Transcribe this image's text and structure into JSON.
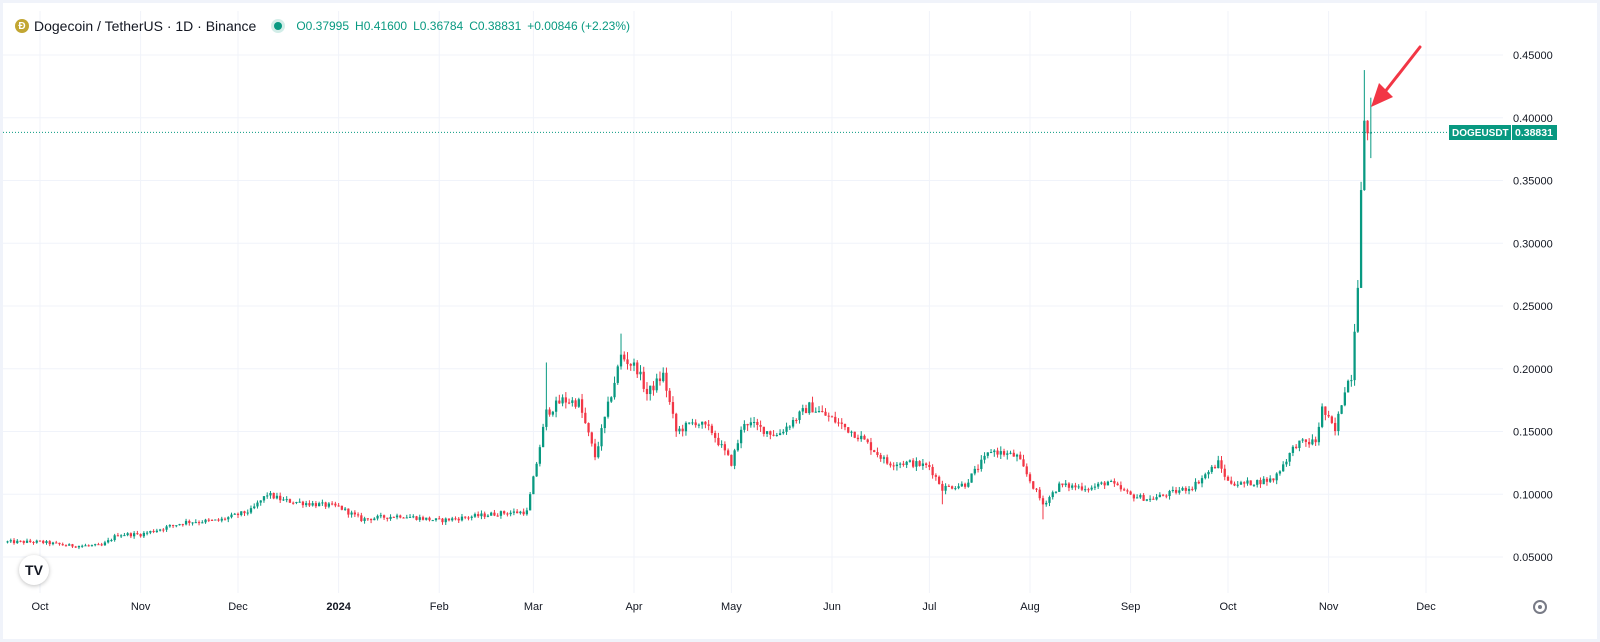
{
  "header": {
    "title": "Dogecoin / TetherUS · 1D · Binance",
    "logo_glyph": "Ð",
    "status_icon": "market-open-dot-icon",
    "ohlc": {
      "open_label": "O",
      "open": "0.37995",
      "high_label": "H",
      "high": "0.41600",
      "low_label": "L",
      "low": "0.36784",
      "close_label": "C",
      "close": "0.38831",
      "change": "+0.00846 (+2.23%)"
    }
  },
  "price_tag": {
    "symbol": "DOGEUSDT",
    "value": "0.38831"
  },
  "colors": {
    "up": "#089981",
    "down": "#f23645",
    "grid": "#f0f3fa",
    "text": "#131722",
    "arrow": "#f23645"
  },
  "chart_data": {
    "type": "candlestick",
    "symbol": "DOGEUSDT",
    "interval": "1D",
    "exchange": "Binance",
    "ylim": [
      0.03,
      0.47
    ],
    "y_ticks": [
      "0.05000",
      "0.10000",
      "0.15000",
      "0.20000",
      "0.25000",
      "0.30000",
      "0.35000",
      "0.40000",
      "0.45000"
    ],
    "x_ticks": [
      "Oct",
      "Nov",
      "Dec",
      "2024",
      "Feb",
      "Mar",
      "Apr",
      "May",
      "Jun",
      "Jul",
      "Aug",
      "Sep",
      "Oct",
      "Nov",
      "Dec"
    ],
    "x_tick_dates": [
      "2023-10-01",
      "2023-11-01",
      "2023-12-01",
      "2024-01-01",
      "2024-02-01",
      "2024-03-01",
      "2024-04-01",
      "2024-05-01",
      "2024-06-01",
      "2024-07-01",
      "2024-08-01",
      "2024-09-01",
      "2024-10-01",
      "2024-11-01",
      "2024-12-01"
    ],
    "last_close": 0.38831,
    "annotation": "red arrow pointing at latest candles",
    "close_keyframes": [
      [
        "2023-09-21",
        0.062
      ],
      [
        "2023-10-01",
        0.062
      ],
      [
        "2023-10-10",
        0.059
      ],
      [
        "2023-10-20",
        0.059
      ],
      [
        "2023-10-25",
        0.068
      ],
      [
        "2023-11-01",
        0.068
      ],
      [
        "2023-11-15",
        0.078
      ],
      [
        "2023-11-25",
        0.079
      ],
      [
        "2023-12-05",
        0.087
      ],
      [
        "2023-12-10",
        0.1
      ],
      [
        "2023-12-15",
        0.095
      ],
      [
        "2024-01-01",
        0.09
      ],
      [
        "2024-01-08",
        0.08
      ],
      [
        "2024-01-20",
        0.083
      ],
      [
        "2024-02-01",
        0.079
      ],
      [
        "2024-02-20",
        0.085
      ],
      [
        "2024-02-28",
        0.086
      ],
      [
        "2024-03-02",
        0.125
      ],
      [
        "2024-03-05",
        0.165
      ],
      [
        "2024-03-10",
        0.175
      ],
      [
        "2024-03-15",
        0.173
      ],
      [
        "2024-03-20",
        0.13
      ],
      [
        "2024-03-24",
        0.17
      ],
      [
        "2024-03-28",
        0.21
      ],
      [
        "2024-04-02",
        0.2
      ],
      [
        "2024-04-05",
        0.18
      ],
      [
        "2024-04-10",
        0.195
      ],
      [
        "2024-04-14",
        0.15
      ],
      [
        "2024-04-20",
        0.158
      ],
      [
        "2024-04-25",
        0.15
      ],
      [
        "2024-05-01",
        0.125
      ],
      [
        "2024-05-05",
        0.158
      ],
      [
        "2024-05-15",
        0.147
      ],
      [
        "2024-05-25",
        0.17
      ],
      [
        "2024-06-01",
        0.16
      ],
      [
        "2024-06-10",
        0.145
      ],
      [
        "2024-06-18",
        0.125
      ],
      [
        "2024-06-25",
        0.125
      ],
      [
        "2024-07-01",
        0.122
      ],
      [
        "2024-07-05",
        0.105
      ],
      [
        "2024-07-12",
        0.108
      ],
      [
        "2024-07-20",
        0.135
      ],
      [
        "2024-07-28",
        0.13
      ],
      [
        "2024-08-05",
        0.092
      ],
      [
        "2024-08-10",
        0.107
      ],
      [
        "2024-08-20",
        0.105
      ],
      [
        "2024-08-25",
        0.11
      ],
      [
        "2024-09-01",
        0.099
      ],
      [
        "2024-09-07",
        0.096
      ],
      [
        "2024-09-20",
        0.106
      ],
      [
        "2024-09-28",
        0.125
      ],
      [
        "2024-10-01",
        0.11
      ],
      [
        "2024-10-05",
        0.108
      ],
      [
        "2024-10-15",
        0.112
      ],
      [
        "2024-10-22",
        0.14
      ],
      [
        "2024-10-28",
        0.142
      ],
      [
        "2024-10-30",
        0.168
      ],
      [
        "2024-11-03",
        0.15
      ],
      [
        "2024-11-06",
        0.185
      ],
      [
        "2024-11-08",
        0.195
      ],
      [
        "2024-11-10",
        0.27
      ],
      [
        "2024-11-11",
        0.35
      ],
      [
        "2024-11-12",
        0.395
      ],
      [
        "2024-11-13",
        0.38
      ],
      [
        "2024-11-14",
        0.38831
      ]
    ],
    "spikes": [
      {
        "date": "2024-03-05",
        "high": 0.205
      },
      {
        "date": "2024-03-28",
        "high": 0.228
      },
      {
        "date": "2024-11-12",
        "high": 0.438
      },
      {
        "date": "2024-08-05",
        "low": 0.08
      },
      {
        "date": "2024-07-05",
        "low": 0.092
      }
    ]
  }
}
